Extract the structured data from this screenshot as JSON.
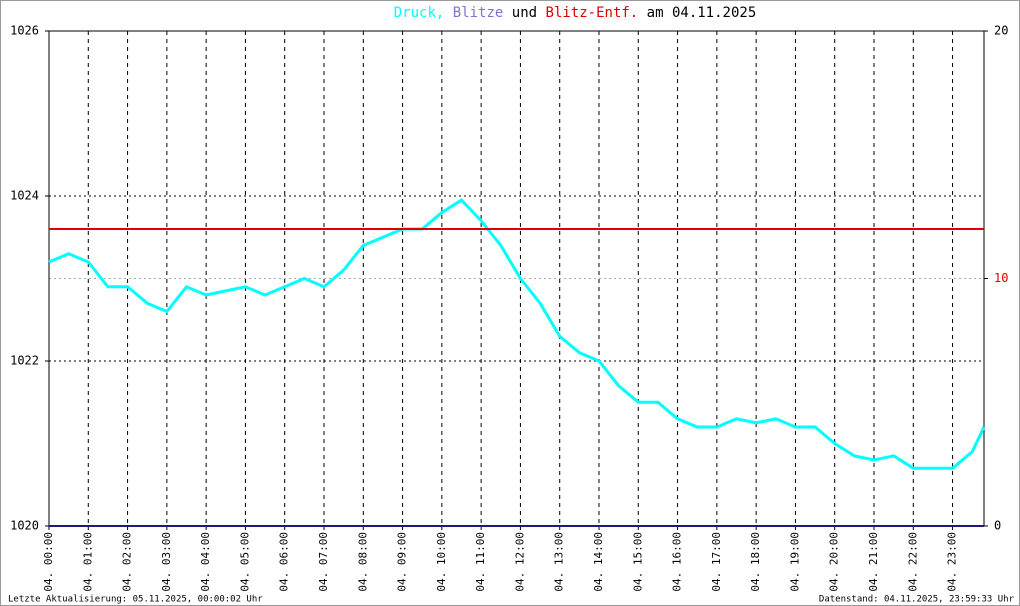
{
  "chart_data": {
    "type": "line",
    "title": [
      "und",
      "am 04.11.2025"
    ],
    "footer_left": "Letzte Aktualisierung: 05.11.2025, 00:00:02 Uhr",
    "footer_right": "Datenstand: 04.11.2025, 23:59:33 Uhr",
    "x": [
      0,
      0.5,
      1,
      1.5,
      2,
      2.5,
      3,
      3.5,
      4,
      4.5,
      5,
      5.5,
      6,
      6.5,
      7,
      7.5,
      8,
      8.5,
      9,
      9.5,
      10,
      10.5,
      11,
      11.5,
      12,
      12.5,
      13,
      13.5,
      14,
      14.5,
      15,
      15.5,
      16,
      16.5,
      17,
      17.5,
      18,
      18.5,
      19,
      19.5,
      20,
      20.5,
      21,
      21.5,
      22,
      22.5,
      23,
      23.5,
      23.8
    ],
    "series": [
      {
        "name": "Druck,",
        "color": "#00ffff",
        "axis": "y",
        "values": [
          1023.2,
          1023.3,
          1023.2,
          1022.9,
          1022.9,
          1022.7,
          1022.6,
          1022.9,
          1022.8,
          1022.85,
          1022.9,
          1022.8,
          1022.9,
          1023.0,
          1022.9,
          1023.1,
          1023.4,
          1023.5,
          1023.6,
          1023.6,
          1023.8,
          1023.95,
          1023.7,
          1023.4,
          1023.0,
          1022.7,
          1022.3,
          1022.1,
          1022.0,
          1021.7,
          1021.5,
          1021.5,
          1021.3,
          1021.2,
          1021.2,
          1021.3,
          1021.25,
          1021.3,
          1021.2,
          1021.2,
          1021.0,
          1020.85,
          1020.8,
          1020.85,
          1020.7,
          1020.7,
          1020.7,
          1020.9,
          1021.2
        ]
      },
      {
        "name": "Blitze",
        "color": "#1a1a80",
        "axis": "y2",
        "x": [
          0,
          23.8
        ],
        "values": [
          0,
          0
        ]
      },
      {
        "name": "Blitz-Entf.",
        "color": "#dd0000",
        "axis": "y2",
        "x": [
          0,
          23.8
        ],
        "values": [
          12,
          12
        ]
      }
    ],
    "xlim": [
      0,
      23.8
    ],
    "xticks": [
      {
        "value": 0,
        "label": "04. 00:00"
      },
      {
        "value": 1,
        "label": "04. 01:00"
      },
      {
        "value": 2,
        "label": "04. 02:00"
      },
      {
        "value": 3,
        "label": "04. 03:00"
      },
      {
        "value": 4,
        "label": "04. 04:00"
      },
      {
        "value": 5,
        "label": "04. 05:00"
      },
      {
        "value": 6,
        "label": "04. 06:00"
      },
      {
        "value": 7,
        "label": "04. 07:00"
      },
      {
        "value": 8,
        "label": "04. 08:00"
      },
      {
        "value": 9,
        "label": "04. 09:00"
      },
      {
        "value": 10,
        "label": "04. 10:00"
      },
      {
        "value": 11,
        "label": "04. 11:00"
      },
      {
        "value": 12,
        "label": "04. 12:00"
      },
      {
        "value": 13,
        "label": "04. 13:00"
      },
      {
        "value": 14,
        "label": "04. 14:00"
      },
      {
        "value": 15,
        "label": "04. 15:00"
      },
      {
        "value": 16,
        "label": "04. 16:00"
      },
      {
        "value": 17,
        "label": "04. 17:00"
      },
      {
        "value": 18,
        "label": "04. 18:00"
      },
      {
        "value": 19,
        "label": "04. 19:00"
      },
      {
        "value": 20,
        "label": "04. 20:00"
      },
      {
        "value": 21,
        "label": "04. 21:00"
      },
      {
        "value": 22,
        "label": "04. 22:00"
      },
      {
        "value": 23,
        "label": "04. 23:00"
      }
    ],
    "ylim": [
      1020,
      1026
    ],
    "yticks": [
      1020,
      1022,
      1024,
      1026
    ],
    "y2lim": [
      0,
      20
    ],
    "y2ticks": [
      0,
      10,
      20
    ],
    "grid": true
  }
}
